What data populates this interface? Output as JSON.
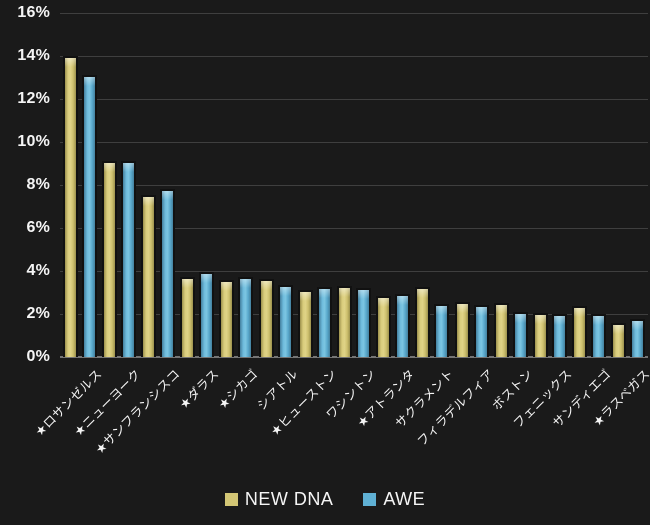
{
  "chart_data": {
    "type": "bar",
    "title": "",
    "xlabel": "",
    "ylabel": "",
    "categories": [
      "★ロサンゼルス",
      "★ニューヨーク",
      "★サンフランシスコ",
      "★ダラス",
      "★シカゴ",
      "シアトル",
      "★ヒューストン",
      "ワシントン",
      "★アトランタ",
      "サクラメント",
      "フィラデルフィア",
      "ボストン",
      "フェニックス",
      "サンディエゴ",
      "★ラスベガス"
    ],
    "series": [
      {
        "name": "NEW DNA",
        "color": "#d3c675",
        "values": [
          14.0,
          9.1,
          7.55,
          3.7,
          3.6,
          3.65,
          3.1,
          3.3,
          2.85,
          3.25,
          2.55,
          2.5,
          2.05,
          2.35,
          1.6
        ]
      },
      {
        "name": "AWE",
        "color": "#5fb0d4",
        "values": [
          13.1,
          9.1,
          7.8,
          3.95,
          3.7,
          3.35,
          3.25,
          3.2,
          2.95,
          2.45,
          2.4,
          2.1,
          2.0,
          2.0,
          1.75
        ]
      }
    ],
    "ylim": [
      0,
      16
    ],
    "ytick_step": 2,
    "ytick_labels": [
      "0%",
      "2%",
      "4%",
      "6%",
      "8%",
      "10%",
      "12%",
      "14%",
      "16%"
    ],
    "grid": true,
    "legend_position": "bottom",
    "legend_labels": [
      "NEW DNA",
      "AWE"
    ]
  },
  "colors": {
    "background": "#1a1a1a",
    "gridline": "#3f3f3f",
    "axis_line": "#757575",
    "text": "#f5f5f5",
    "bar_outline": "#111111",
    "series_new_dna": "#d3c675",
    "series_awe": "#5fb0d4"
  }
}
